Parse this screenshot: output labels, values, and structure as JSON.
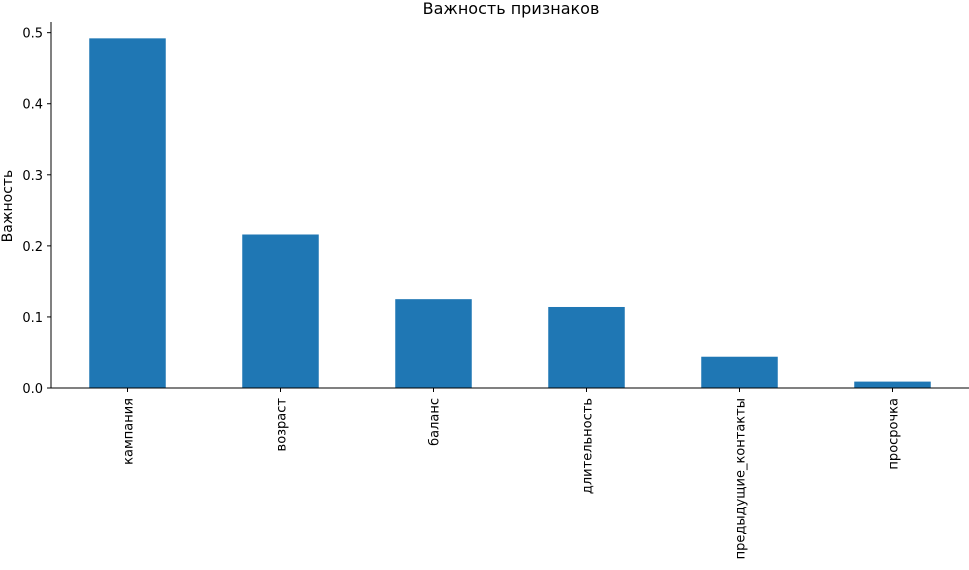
{
  "chart_data": {
    "type": "bar",
    "title": "Важность признаков",
    "xlabel": "",
    "ylabel": "Важность",
    "categories": [
      "кампания",
      "возраст",
      "баланс",
      "длительность",
      "предыдущие_контакты",
      "просрочка"
    ],
    "values": [
      0.492,
      0.216,
      0.125,
      0.114,
      0.044,
      0.009
    ],
    "ylim": [
      0,
      0.515
    ],
    "yticks": [
      0.0,
      0.1,
      0.2,
      0.3,
      0.4,
      0.5
    ],
    "ytick_labels": [
      "0.0",
      "0.1",
      "0.2",
      "0.3",
      "0.4",
      "0.5"
    ],
    "bar_color": "#1f77b4",
    "grid": false,
    "legend": false
  }
}
